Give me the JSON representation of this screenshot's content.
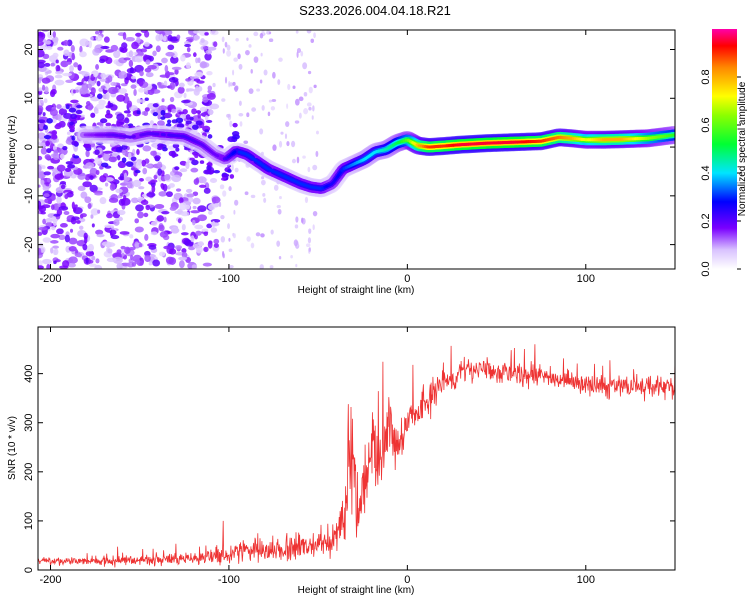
{
  "title": "S233.2026.004.04.18.R21",
  "chart_data": [
    {
      "type": "heatmap",
      "xlabel": "Height of straight line (km)",
      "ylabel": "Frequency (Hz)",
      "xlim": [
        -207,
        150
      ],
      "ylim": [
        -25,
        24
      ],
      "xticks": [
        -200,
        -100,
        0,
        100
      ],
      "xtick_labels": [
        "-200",
        "-100",
        "0",
        "100"
      ],
      "yticks": [
        -20,
        -10,
        0,
        10,
        20
      ],
      "ytick_labels": [
        "-20",
        "-10",
        "0",
        "10",
        "20"
      ],
      "ridge": {
        "x": [
          -180,
          -165,
          -155,
          -145,
          -135,
          -125,
          -115,
          -108,
          -102,
          -96,
          -90,
          -84,
          -78,
          -72,
          -66,
          -60,
          -54,
          -48,
          -42,
          -36,
          -30,
          -24,
          -18,
          -12,
          -6,
          0,
          6,
          12,
          20,
          30,
          45,
          60,
          75,
          85,
          92,
          100,
          110,
          120,
          135,
          150
        ],
        "y": [
          2.5,
          2.5,
          2,
          2.8,
          2.5,
          2.2,
          0.5,
          -1.5,
          -2.5,
          -0.8,
          -1.5,
          -3,
          -4.5,
          -5.5,
          -6.5,
          -7.5,
          -8.2,
          -8.5,
          -7.5,
          -4.5,
          -3.5,
          -2.5,
          -1,
          -0.5,
          0.8,
          1.5,
          0.3,
          0,
          0.2,
          0.5,
          0.8,
          1,
          1.2,
          2,
          1.8,
          1.5,
          1.5,
          1.6,
          1.8,
          2.5
        ],
        "intensity": [
          0.15,
          0.2,
          0.2,
          0.2,
          0.22,
          0.22,
          0.2,
          0.18,
          0.22,
          0.3,
          0.3,
          0.3,
          0.3,
          0.3,
          0.3,
          0.3,
          0.3,
          0.3,
          0.25,
          0.3,
          0.35,
          0.4,
          0.4,
          0.45,
          0.5,
          0.6,
          0.8,
          0.9,
          0.9,
          0.95,
          0.95,
          0.95,
          0.9,
          0.85,
          0.8,
          0.7,
          0.8,
          0.8,
          0.65,
          0.55
        ]
      },
      "colorbar": {
        "label": "Normalized spectral amplitude",
        "range": [
          0,
          1
        ],
        "ticks": [
          0.0,
          0.2,
          0.4,
          0.6,
          0.8
        ],
        "tick_labels": [
          "0.0",
          "0.2",
          "0.4",
          "0.6",
          "0.8"
        ]
      }
    },
    {
      "type": "line",
      "xlabel": "Height of straight line (km)",
      "ylabel": "SNR (10 * v/v)",
      "xlim": [
        -207,
        150
      ],
      "ylim": [
        0,
        495
      ],
      "xticks": [
        -200,
        -100,
        0,
        100
      ],
      "xtick_labels": [
        "-200",
        "-100",
        "0",
        "100"
      ],
      "yticks": [
        0,
        100,
        200,
        300,
        400
      ],
      "ytick_labels": [
        "0",
        "100",
        "200",
        "300",
        "400"
      ],
      "series": [
        {
          "name": "SNR",
          "color": "#ee3333",
          "x": [
            -207,
            -180,
            -150,
            -120,
            -100,
            -90,
            -80,
            -70,
            -60,
            -50,
            -42,
            -35,
            -32,
            -28,
            -24,
            -20,
            -15,
            -10,
            -5,
            0,
            5,
            10,
            15,
            20,
            25,
            30,
            35,
            40,
            45,
            50,
            55,
            60,
            70,
            80,
            90,
            100,
            110,
            120,
            130,
            140,
            150
          ],
          "y": [
            18,
            18,
            20,
            24,
            32,
            40,
            38,
            42,
            50,
            45,
            60,
            110,
            240,
            90,
            180,
            260,
            210,
            290,
            250,
            300,
            320,
            340,
            360,
            390,
            385,
            410,
            405,
            410,
            408,
            400,
            405,
            400,
            395,
            392,
            385,
            380,
            372,
            378,
            372,
            372,
            370
          ],
          "noise": [
            8,
            10,
            12,
            15,
            25,
            25,
            28,
            28,
            32,
            30,
            38,
            70,
            150,
            70,
            90,
            90,
            80,
            70,
            55,
            50,
            45,
            40,
            35,
            30,
            30,
            25,
            25,
            25,
            25,
            25,
            25,
            25,
            25,
            25,
            25,
            25,
            25,
            25,
            25,
            25,
            25
          ]
        }
      ]
    }
  ]
}
